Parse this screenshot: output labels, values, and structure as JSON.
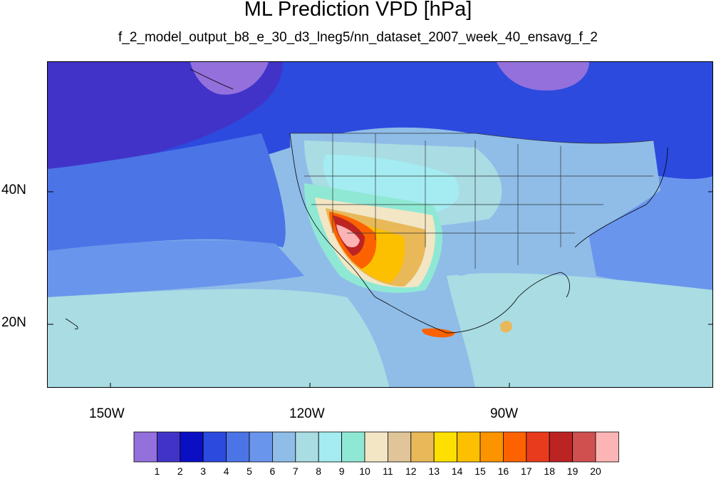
{
  "title": "ML Prediction VPD [hPa]",
  "subtitle": "f_2_model_output_b8_e_30_d3_lneg5/nn_dataset_2007_week_40_ensavg_f_2",
  "map": {
    "lat_labels": [
      "40N",
      "20N"
    ],
    "lon_labels": [
      "150W",
      "120W",
      "90W"
    ]
  },
  "colorbar": {
    "labels": [
      "1",
      "2",
      "3",
      "4",
      "5",
      "6",
      "7",
      "8",
      "9",
      "10",
      "11",
      "12",
      "13",
      "14",
      "15",
      "16",
      "17",
      "18",
      "19",
      "20"
    ],
    "colors": [
      "#9370db",
      "#4133c8",
      "#0a0fc3",
      "#2c4ade",
      "#4b74e6",
      "#6a95ec",
      "#8fbde8",
      "#a9dce3",
      "#a4ecf1",
      "#8fe8d4",
      "#f2e6c4",
      "#e0c49a",
      "#e8b859",
      "#fde000",
      "#fcc000",
      "#fc9400",
      "#fc6200",
      "#e83a1d",
      "#bc2424",
      "#d05050",
      "#fcb4b4"
    ]
  }
}
